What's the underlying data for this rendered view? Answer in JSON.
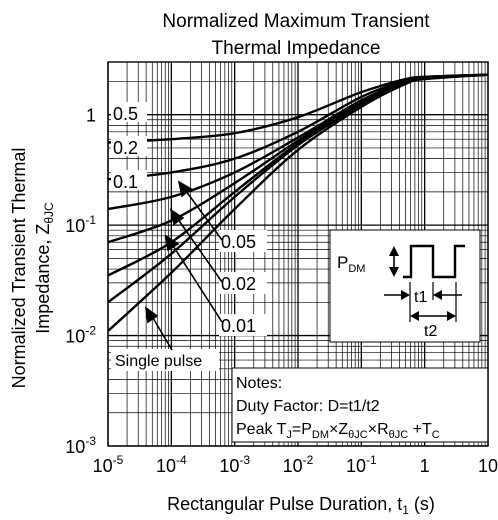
{
  "chart_data": {
    "type": "line",
    "title_line1": "Normalized Maximum Transient",
    "title_line2": "Thermal Impedance",
    "xlabel_main": "Rectangular Pulse Duration, t",
    "xlabel_sub": "1",
    "xlabel_unit": " (s)",
    "ylabel_line1": "Normalized Transient Thermal",
    "ylabel_line2_main": "Impedance, Z",
    "ylabel_line2_sub": "θJC",
    "x_scale": "log",
    "y_scale": "log",
    "xlim": [
      1e-05,
      10
    ],
    "ylim": [
      0.001,
      3
    ],
    "grid": true,
    "x_ticks": [
      {
        "base": "10",
        "exp": "-5"
      },
      {
        "base": "10",
        "exp": "-4"
      },
      {
        "base": "10",
        "exp": "-3"
      },
      {
        "base": "10",
        "exp": "-2"
      },
      {
        "base": "10",
        "exp": "-1"
      },
      {
        "base": "1",
        "exp": ""
      },
      {
        "base": "10",
        "exp": ""
      }
    ],
    "y_ticks": [
      {
        "base": "1",
        "exp": ""
      },
      {
        "base": "10",
        "exp": "-1"
      },
      {
        "base": "10",
        "exp": "-2"
      },
      {
        "base": "10",
        "exp": "-3"
      }
    ],
    "series": [
      {
        "name": "0.5",
        "x": [
          1e-05,
          0.0001,
          0.001,
          0.01,
          0.1,
          0.5,
          1,
          10
        ],
        "y": [
          0.56,
          0.6,
          0.68,
          0.95,
          1.6,
          2.1,
          2.2,
          2.3
        ]
      },
      {
        "name": "0.2",
        "x": [
          1e-05,
          0.0001,
          0.001,
          0.01,
          0.1,
          0.5,
          1,
          10
        ],
        "y": [
          0.26,
          0.3,
          0.4,
          0.7,
          1.45,
          2.05,
          2.2,
          2.3
        ]
      },
      {
        "name": "0.1",
        "x": [
          1e-05,
          0.0001,
          0.001,
          0.01,
          0.1,
          0.5,
          1,
          10
        ],
        "y": [
          0.14,
          0.18,
          0.3,
          0.62,
          1.35,
          2.0,
          2.18,
          2.3
        ]
      },
      {
        "name": "0.05",
        "x": [
          1e-05,
          0.0001,
          0.001,
          0.01,
          0.1,
          0.5,
          1,
          10
        ],
        "y": [
          0.07,
          0.11,
          0.24,
          0.58,
          1.3,
          1.98,
          2.15,
          2.3
        ]
      },
      {
        "name": "0.02",
        "x": [
          1e-05,
          0.0001,
          0.001,
          0.01,
          0.1,
          0.5,
          1,
          10
        ],
        "y": [
          0.035,
          0.07,
          0.2,
          0.55,
          1.25,
          1.95,
          2.15,
          2.3
        ]
      },
      {
        "name": "0.01",
        "x": [
          1e-05,
          0.0001,
          0.001,
          0.01,
          0.1,
          0.5,
          1,
          10
        ],
        "y": [
          0.02,
          0.055,
          0.18,
          0.53,
          1.22,
          1.93,
          2.12,
          2.3
        ]
      },
      {
        "name": "Single pulse",
        "x": [
          1e-05,
          0.0001,
          0.001,
          0.01,
          0.1,
          0.5,
          1,
          10
        ],
        "y": [
          0.011,
          0.037,
          0.14,
          0.48,
          1.18,
          1.9,
          2.1,
          2.3
        ]
      }
    ],
    "curve_labels": [
      "0.5",
      "0.2",
      "0.1",
      "0.05",
      "0.02",
      "0.01",
      "Single pulse"
    ],
    "inset": {
      "pdm_main": "P",
      "pdm_sub": "DM",
      "t1": "t1",
      "t2": "t2"
    },
    "notes": {
      "heading": "Notes:",
      "duty": "Duty Factor: D=t1/t2",
      "peak": [
        {
          "t": "Peak T"
        },
        {
          "t": "J",
          "sub": true
        },
        {
          "t": "=P"
        },
        {
          "t": "DM",
          "sub": true
        },
        {
          "t": "×Z"
        },
        {
          "t": "θJC",
          "sub": true
        },
        {
          "t": "×R"
        },
        {
          "t": "θJC",
          "sub": true
        },
        {
          "t": " +T"
        },
        {
          "t": "C",
          "sub": true
        }
      ]
    }
  }
}
